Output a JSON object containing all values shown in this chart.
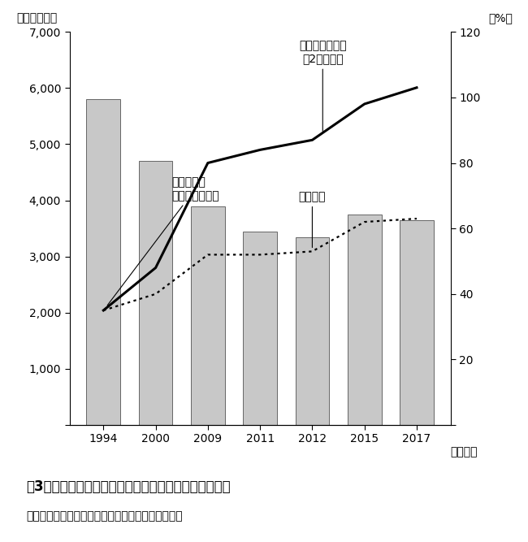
{
  "years": [
    1994,
    2000,
    2009,
    2011,
    2012,
    2015,
    2017
  ],
  "bar_values": [
    5800,
    4700,
    3900,
    3450,
    3350,
    3750,
    3650
  ],
  "farm_ratio_pct": [
    35,
    40,
    52,
    52,
    53,
    62,
    63
  ],
  "urban_income_pct": [
    35,
    48,
    80,
    84,
    87,
    98,
    103
  ],
  "bar_color": "#c8c8c8",
  "bar_edgecolor": "#666666",
  "left_ylabel": "（万ウォン）",
  "right_ylabel": "（%）",
  "xlabel_suffix": "（年度）",
  "ylim_left": [
    0,
    7000
  ],
  "ylim_right": [
    0,
    120
  ],
  "yticks_left": [
    0,
    1000,
    2000,
    3000,
    4000,
    5000,
    6000,
    7000
  ],
  "yticks_right": [
    0,
    20,
    40,
    60,
    80,
    100,
    120
  ],
  "label_urban_income": "都市勤労者所得\n（2人以上）",
  "label_farm_ratio": "農家所得／\n都市勤労者所得",
  "label_farm_income": "農家所得",
  "title_fig": "図3　韓国における農家所得と都市勤労者との所得格差",
  "caption": "資料：農林部「農林水産食品主要統計」より作成。",
  "bg_color": "#ffffff",
  "bar_width": 0.65
}
